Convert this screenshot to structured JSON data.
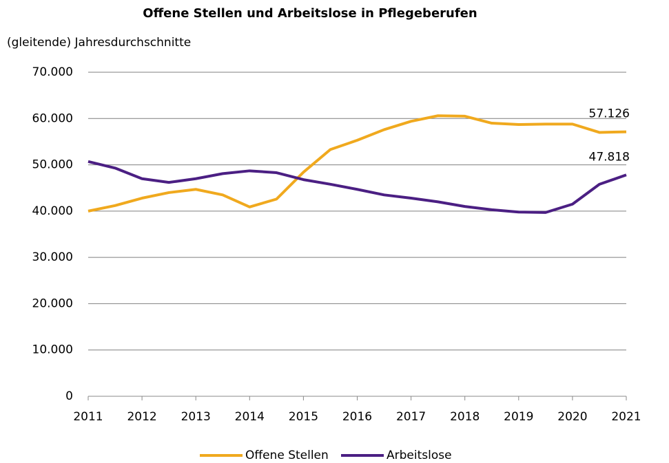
{
  "chart_data": {
    "type": "line",
    "title": "Offene Stellen und Arbeitslose in Pflegeberufen",
    "subtitle": "(gleitende) Jahresdurchschnitte",
    "x": [
      2011,
      2011.5,
      2012,
      2012.5,
      2013,
      2013.5,
      2014,
      2014.5,
      2015,
      2015.5,
      2016,
      2016.5,
      2017,
      2017.5,
      2018,
      2018.5,
      2019,
      2019.5,
      2020,
      2020.5,
      2021
    ],
    "xlim": [
      2011,
      2021
    ],
    "xticks": [
      2011,
      2012,
      2013,
      2014,
      2015,
      2016,
      2017,
      2018,
      2019,
      2020,
      2021
    ],
    "ylim": [
      0,
      70000
    ],
    "yticks": [
      0,
      {
        "value": 10000,
        "label": "10.000"
      },
      {
        "value": 20000,
        "label": "20.000"
      },
      {
        "value": 30000,
        "label": "30.000"
      },
      {
        "value": 40000,
        "label": "40.000"
      },
      {
        "value": 50000,
        "label": "50.000"
      },
      {
        "value": 60000,
        "label": "60.000"
      },
      {
        "value": 70000,
        "label": "70.000"
      }
    ],
    "grid": true,
    "legend": "bottom",
    "series": [
      {
        "name": "Offene Stellen",
        "color": "#f0a91e",
        "values": [
          40000,
          41200,
          42800,
          44000,
          44700,
          43500,
          40900,
          42600,
          48400,
          53300,
          55300,
          57600,
          59400,
          60600,
          60500,
          59000,
          58700,
          58800,
          58800,
          57000,
          57126
        ],
        "value_labels": [
          null,
          null,
          null,
          null,
          null,
          null,
          null,
          null,
          null,
          null,
          null,
          null,
          null,
          null,
          null,
          null,
          null,
          null,
          null,
          null,
          "57.126"
        ]
      },
      {
        "name": "Arbeitslose",
        "color": "#4b1f83",
        "values": [
          50700,
          49300,
          47000,
          46200,
          47000,
          48100,
          48700,
          48300,
          46800,
          45800,
          44700,
          43500,
          42800,
          42000,
          41000,
          40300,
          39800,
          39700,
          41500,
          45800,
          47818
        ],
        "value_labels": [
          null,
          null,
          null,
          null,
          null,
          null,
          null,
          null,
          null,
          null,
          null,
          null,
          null,
          null,
          null,
          null,
          null,
          null,
          null,
          null,
          "47.818"
        ]
      }
    ]
  }
}
